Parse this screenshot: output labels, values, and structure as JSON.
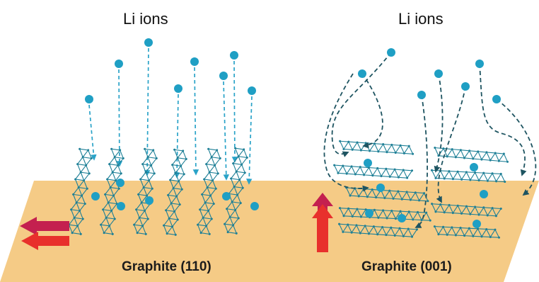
{
  "labels": {
    "ions_left": "Li ions",
    "ions_right": "Li ions",
    "graphite_left": "Graphite (110)",
    "graphite_right": "Graphite (001)"
  },
  "colors": {
    "substrate": "#f5cb86",
    "ion": "#1f9fc4",
    "lattice": "#1d7f96",
    "path_left": "#2aa3c8",
    "path_right": "#1e5461",
    "arrow_red": "#e8302c",
    "arrow_magenta": "#c4204f"
  },
  "icons": {
    "left_indicator": "horizontal-red-double-arrow",
    "right_indicator": "vertical-red-double-arrow",
    "ion": "circle",
    "graphene": "hexagonal-lattice"
  }
}
